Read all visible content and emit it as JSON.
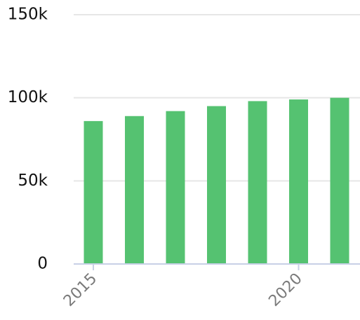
{
  "chart_data": {
    "type": "bar",
    "x": [
      2015,
      2016,
      2017,
      2018,
      2019,
      2020,
      2021
    ],
    "values": [
      86000,
      89000,
      92000,
      95000,
      98000,
      99000,
      100000
    ],
    "ylim": [
      0,
      150000
    ],
    "yticks": [
      {
        "value": 0,
        "label": "0"
      },
      {
        "value": 50000,
        "label": "50k"
      },
      {
        "value": 100000,
        "label": "100k"
      },
      {
        "value": 150000,
        "label": "150k"
      }
    ],
    "xticks": [
      {
        "value": 2015,
        "label": "2015"
      },
      {
        "value": 2020,
        "label": "2020"
      }
    ],
    "grid": true,
    "colors": {
      "bar": "#55c271",
      "grid": "#e6e6e6",
      "axis": "#c8d0e6"
    }
  }
}
